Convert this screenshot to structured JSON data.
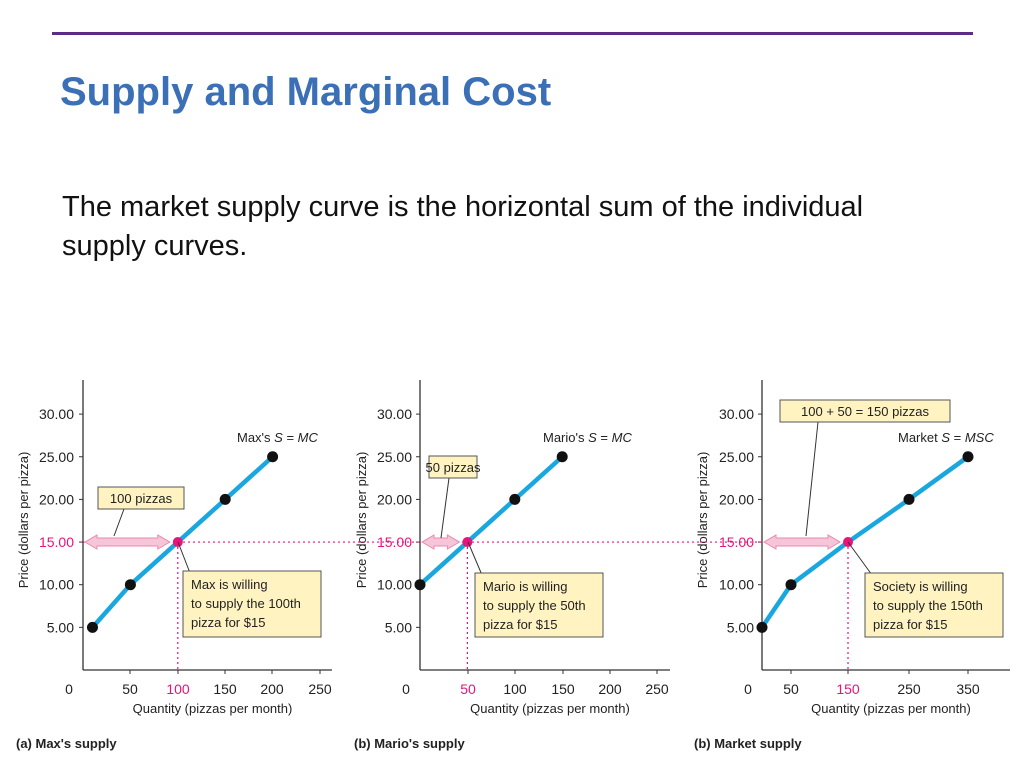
{
  "slide": {
    "title": "Supply and Marginal Cost",
    "body": "The market supply curve is the horizontal sum of the individual supply curves."
  },
  "colors": {
    "title": "#3b6fb6",
    "rule": "#5b2d86",
    "curve": "#1aa7e0",
    "highlight": "#e8147a",
    "arrow_fill": "#f6c6d8",
    "callout_fill": "#fff3c2"
  },
  "chart_data": [
    {
      "type": "line",
      "panel_label": "(a) Max's supply",
      "ylabel": "Price (dollars per pizza)",
      "xlabel": "Quantity (pizzas per month)",
      "x_ticks": [
        "0",
        "50",
        "100",
        "150",
        "200",
        "250"
      ],
      "y_ticks": [
        "5.00",
        "10.00",
        "15.00",
        "20.00",
        "25.00",
        "30.00"
      ],
      "highlight_x_tick": "100",
      "highlight_y_tick": "15.00",
      "curve_label": "Max's S = MC",
      "series": [
        {
          "x": [
            10,
            50,
            100,
            150,
            200
          ],
          "y": [
            5,
            10,
            15,
            20,
            25
          ]
        }
      ],
      "highlight_point": {
        "x": 100,
        "y": 15
      },
      "arrow_label": "100 pizzas",
      "callout": [
        "Max is willing",
        "to supply the 100th",
        "pizza for $15"
      ],
      "xlim": [
        0,
        250
      ],
      "ylim": [
        0,
        30
      ]
    },
    {
      "type": "line",
      "panel_label": "(b) Mario's supply",
      "ylabel": "Price (dollars per pizza)",
      "xlabel": "Quantity (pizzas per month)",
      "x_ticks": [
        "0",
        "50",
        "100",
        "150",
        "200",
        "250"
      ],
      "y_ticks": [
        "5.00",
        "10.00",
        "15.00",
        "20.00",
        "25.00",
        "30.00"
      ],
      "highlight_x_tick": "50",
      "highlight_y_tick": "15.00",
      "curve_label": "Mario's S = MC",
      "series": [
        {
          "x": [
            0,
            50,
            100,
            150
          ],
          "y": [
            10,
            15,
            20,
            25
          ]
        }
      ],
      "highlight_point": {
        "x": 50,
        "y": 15
      },
      "arrow_label": "50 pizzas",
      "callout": [
        "Mario is willing",
        "to supply the 50th",
        "pizza for $15"
      ],
      "xlim": [
        0,
        250
      ],
      "ylim": [
        0,
        30
      ]
    },
    {
      "type": "line",
      "panel_label": "(b) Market supply",
      "ylabel": "Price (dollars per pizza)",
      "xlabel": "Quantity (pizzas per month)",
      "x_ticks": [
        "0",
        "50",
        "150",
        "250",
        "350"
      ],
      "y_ticks": [
        "5.00",
        "10.00",
        "15.00",
        "20.00",
        "25.00",
        "30.00"
      ],
      "highlight_x_tick": "150",
      "highlight_y_tick": "15.00",
      "curve_label": "Market S = MSC",
      "series": [
        {
          "x": [
            10,
            50,
            150,
            250,
            350
          ],
          "y": [
            5,
            10,
            15,
            20,
            25
          ]
        }
      ],
      "highlight_point": {
        "x": 150,
        "y": 15
      },
      "arrow_label": "100 + 50 = 150 pizzas",
      "callout": [
        "Society is willing",
        "to supply the 150th",
        "pizza for $15"
      ],
      "xlim": [
        0,
        350
      ],
      "ylim": [
        0,
        30
      ]
    }
  ]
}
